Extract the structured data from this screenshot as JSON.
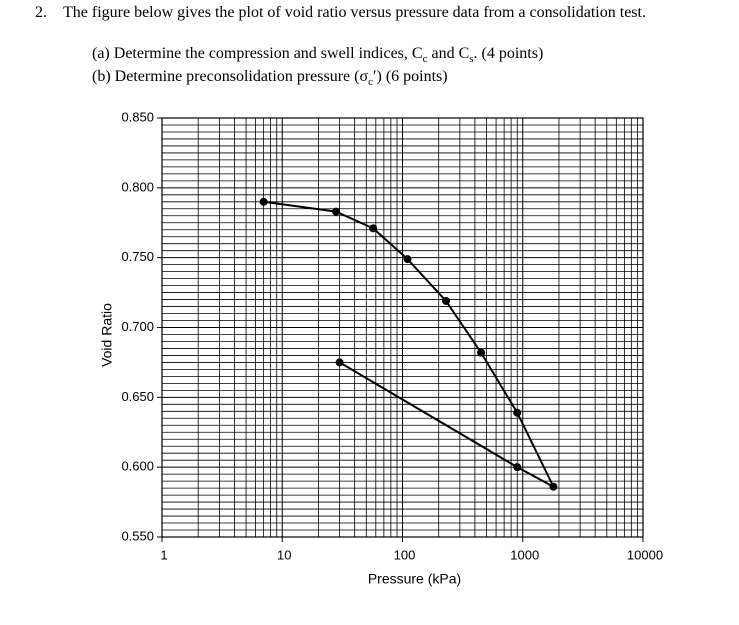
{
  "question": {
    "number": "2.",
    "text": "The figure below gives the plot of void ratio versus pressure data from a consolidation test.",
    "part_a": [
      "(a) Determine the compression and swell indices, C",
      "c",
      " and C",
      "s",
      ". (4 points)"
    ],
    "part_b": [
      "(b) Determine preconsolidation pressure (σ",
      "c",
      "′) (6 points)"
    ]
  },
  "chart_data": {
    "type": "line",
    "xlabel": "Pressure (kPa)",
    "ylabel": "Void Ratio",
    "xscale": "log",
    "grid": true,
    "x": [
      7,
      28,
      57,
      110,
      230,
      450,
      900,
      1800,
      900,
      30
    ],
    "series": [
      {
        "color": "#000000",
        "values": [
          0.79,
          0.783,
          0.771,
          0.749,
          0.719,
          0.682,
          0.639,
          0.586,
          0.6,
          0.675
        ]
      }
    ],
    "xlim": [
      1,
      10000
    ],
    "xticks": [
      1,
      10,
      100,
      1000,
      10000
    ],
    "ylim": [
      0.55,
      0.85
    ],
    "yticks": [
      {
        "value": 0.55,
        "label": "0.550"
      },
      {
        "value": 0.6,
        "label": "0.600"
      },
      {
        "value": 0.65,
        "label": "0.650"
      },
      {
        "value": 0.7,
        "label": "0.700"
      },
      {
        "value": 0.75,
        "label": "0.750"
      },
      {
        "value": 0.8,
        "label": "0.800"
      },
      {
        "value": 0.85,
        "label": "0.850"
      }
    ]
  }
}
